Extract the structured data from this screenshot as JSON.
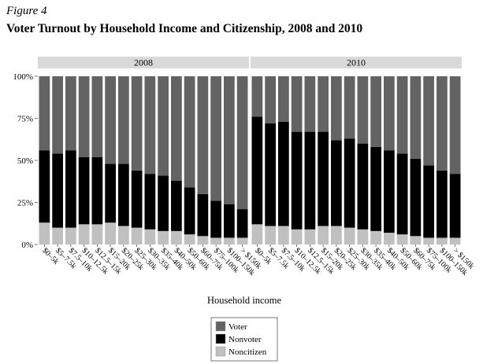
{
  "figure": {
    "label": "Figure 4",
    "title": "Voter Turnout by Household Income and Citizenship, 2008 and 2010"
  },
  "chart_data": {
    "type": "bar",
    "stacked": true,
    "facets": [
      "2008",
      "2010"
    ],
    "categories": {
      "2008": [
        "$0–5k",
        "$5–7.5k",
        "$7.5–10k",
        "$10–12.5k",
        "$12.5–15k",
        "$15–20k",
        "$20–25k",
        "$25–30k",
        "$30–35k",
        "$35–40k",
        "$40–50k",
        "$50–60k",
        "$60–75k",
        "$75–100k",
        "$100–150k",
        "> $150k"
      ],
      "2010": [
        "$0–5k",
        "$5–7.5k",
        "$7.5–10k",
        "$10–12.5k",
        "$12.5–15k",
        "$15–20k",
        "$20–25k",
        "$25–30k",
        "$30–35k",
        "$35–40k",
        "$40–50k",
        "$50–60k",
        "$60–75k",
        "$75–100k",
        "$100–150k",
        "> $150k"
      ]
    },
    "series": [
      {
        "name": "Noncitizen",
        "color": "#c0c0c0",
        "values": {
          "2008": [
            13,
            10,
            10,
            12,
            12,
            13,
            11,
            10,
            9,
            8,
            8,
            6,
            5,
            4,
            4,
            4
          ],
          "2010": [
            12,
            11,
            11,
            9,
            9,
            11,
            11,
            10,
            9,
            8,
            7,
            6,
            5,
            4,
            4,
            4
          ]
        }
      },
      {
        "name": "Nonvoter",
        "color": "#000000",
        "values": {
          "2008": [
            43,
            44,
            46,
            40,
            40,
            35,
            37,
            34,
            33,
            33,
            30,
            28,
            25,
            22,
            20,
            17
          ],
          "2010": [
            64,
            61,
            62,
            58,
            58,
            56,
            51,
            53,
            51,
            50,
            49,
            48,
            46,
            43,
            40,
            38
          ]
        }
      },
      {
        "name": "Voter",
        "color": "#636363",
        "values": {
          "2008": [
            44,
            46,
            44,
            48,
            48,
            52,
            52,
            56,
            58,
            59,
            62,
            66,
            70,
            74,
            76,
            79
          ],
          "2010": [
            24,
            28,
            27,
            33,
            33,
            33,
            38,
            37,
            40,
            42,
            44,
            46,
            49,
            53,
            56,
            58
          ]
        }
      }
    ],
    "y_tick_labels": [
      "0%",
      "25%",
      "50%",
      "75%",
      "100%"
    ],
    "ylim": [
      0,
      100
    ],
    "xlabel": "Household income",
    "ylabel": "",
    "legend": {
      "placement": "bottom-center",
      "entries": [
        "Voter",
        "Nonvoter",
        "Noncitizen"
      ]
    },
    "panel_background": "#ffffff",
    "strip_background": "#d9d9d9"
  }
}
